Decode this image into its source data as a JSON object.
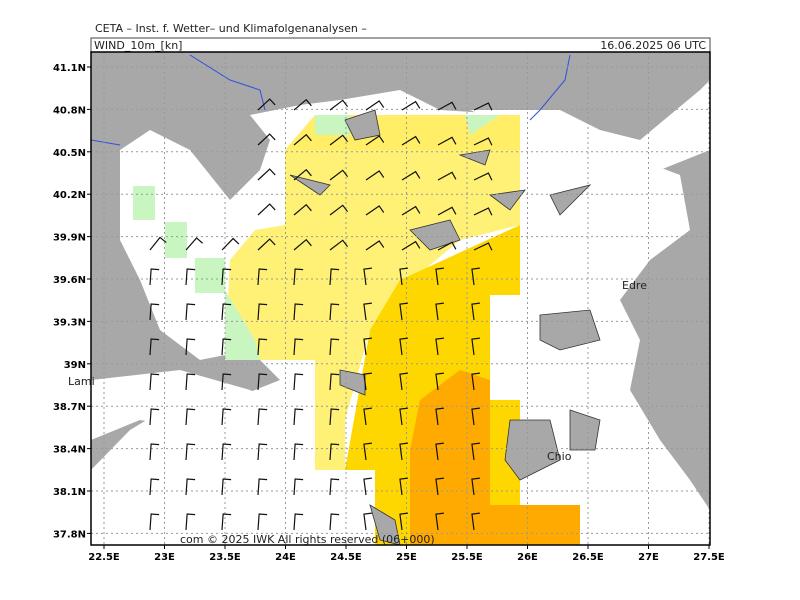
{
  "header": {
    "title": "CETA – Inst. f. Wetter– und Klimafolgenanalysen –",
    "variable": "WIND_10m_[kn]",
    "datetime": "16.06.2025 06 UTC"
  },
  "lat_labels": [
    "41.1N",
    "40.8N",
    "40.5N",
    "40.2N",
    "39.9N",
    "39.6N",
    "39.3N",
    "39N",
    "38.7N",
    "38.4N",
    "38.1N",
    "37.8N"
  ],
  "lon_labels": [
    "22.5E",
    "23E",
    "23.5E",
    "24E",
    "24.5E",
    "25E",
    "25.5E",
    "26E",
    "26.5E",
    "27E",
    "27.5E"
  ],
  "places": [
    "Lami",
    "Edre",
    "Chio"
  ],
  "footer": "com © 2025 IWK  All rights reserved  (06+000)"
}
